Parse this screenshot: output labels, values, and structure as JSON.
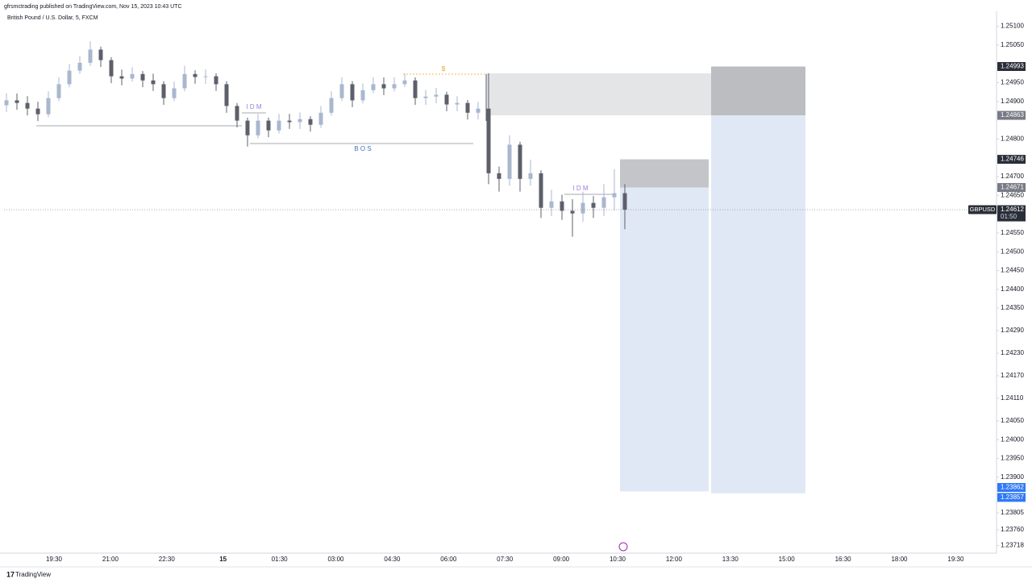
{
  "header": {
    "publisher": "gfrsmctrading published on TradingView.com, Nov 15, 2023 10:43 UTC",
    "symbol": "British Pound / U.S. Dollar, 5, FXCM"
  },
  "footer": {
    "brand": "TradingView"
  },
  "chart_data": {
    "type": "candlestick",
    "x_labels": [
      "19:30",
      "21:00",
      "22:30",
      "15",
      "01:30",
      "03:00",
      "04:30",
      "06:00",
      "07:30",
      "09:00",
      "10:30",
      "12:00",
      "13:30",
      "15:00",
      "16:30",
      "18:00",
      "19:30"
    ],
    "ylim": [
      1.237,
      1.2514
    ],
    "yticks": [
      {
        "value": 1.251,
        "label": "1.25100"
      },
      {
        "value": 1.2505,
        "label": "1.25050"
      },
      {
        "value": 1.2495,
        "label": "1.24950"
      },
      {
        "value": 1.249,
        "label": "1.24900"
      },
      {
        "value": 1.248,
        "label": "1.24800"
      },
      {
        "value": 1.247,
        "label": "1.24700"
      },
      {
        "value": 1.2465,
        "label": "1.24650"
      },
      {
        "value": 1.2455,
        "label": "1.24550"
      },
      {
        "value": 1.245,
        "label": "1.24500"
      },
      {
        "value": 1.2445,
        "label": "1.24450"
      },
      {
        "value": 1.244,
        "label": "1.24400"
      },
      {
        "value": 1.2435,
        "label": "1.24350"
      },
      {
        "value": 1.2429,
        "label": "1.24290"
      },
      {
        "value": 1.2423,
        "label": "1.24230"
      },
      {
        "value": 1.2417,
        "label": "1.24170"
      },
      {
        "value": 1.2411,
        "label": "1.24110"
      },
      {
        "value": 1.2405,
        "label": "1.24050"
      },
      {
        "value": 1.24,
        "label": "1.24000"
      },
      {
        "value": 1.2395,
        "label": "1.23950"
      },
      {
        "value": 1.239,
        "label": "1.23900"
      },
      {
        "value": 1.23805,
        "label": "1.23805"
      },
      {
        "value": 1.2376,
        "label": "1.23760"
      },
      {
        "value": 1.23718,
        "label": "1.23718"
      }
    ],
    "series": [
      {
        "name": "GBPUSD",
        "up_color": "#a9b7cf",
        "down_color": "#5d606b",
        "open": [
          1.2489,
          1.24903,
          1.24896,
          1.24881,
          1.24866,
          1.24909,
          1.24946,
          1.24982,
          1.25003,
          1.25038,
          1.2501,
          1.24967,
          1.24961,
          1.24973,
          1.24956,
          1.24946,
          1.24909,
          1.24935,
          1.24973,
          1.24965,
          1.24967,
          1.24946,
          1.24888,
          1.24849,
          1.2481,
          1.24849,
          1.24823,
          1.24849,
          1.24845,
          1.24853,
          1.24838,
          1.2487,
          1.24909,
          1.24946,
          1.24903,
          1.2493,
          1.24946,
          1.24935,
          1.24946,
          1.24956,
          1.24909,
          1.24913,
          1.24918,
          1.24892,
          1.24896,
          1.2487,
          1.24881,
          1.24709,
          1.24694,
          1.24785,
          1.24694,
          1.24709,
          1.24617,
          1.24634,
          1.24609,
          1.24602,
          1.2463,
          1.24617,
          1.24645,
          1.24656
        ],
        "high": [
          1.24921,
          1.24921,
          1.24914,
          1.24899,
          1.24927,
          1.24964,
          1.25,
          1.25021,
          1.2506,
          1.25046,
          1.25018,
          1.24985,
          1.24991,
          1.24981,
          1.24974,
          1.24954,
          1.24953,
          1.24995,
          1.24983,
          1.24985,
          1.24975,
          1.24954,
          1.24896,
          1.24857,
          1.24867,
          1.24857,
          1.24867,
          1.24867,
          1.24871,
          1.24861,
          1.24888,
          1.24927,
          1.24964,
          1.24954,
          1.24948,
          1.24964,
          1.24964,
          1.24964,
          1.24975,
          1.24964,
          1.24931,
          1.24936,
          1.24926,
          1.24914,
          1.24904,
          1.24899,
          1.24975,
          1.24727,
          1.2481,
          1.24793,
          1.24745,
          1.24717,
          1.24665,
          1.24652,
          1.2464,
          1.2466,
          1.24648,
          1.2468,
          1.2472,
          1.2468
        ],
        "low": [
          1.24872,
          1.24878,
          1.24863,
          1.24848,
          1.24858,
          1.24901,
          1.24938,
          1.24974,
          1.24995,
          1.24992,
          1.24949,
          1.24943,
          1.24953,
          1.24938,
          1.24928,
          1.24891,
          1.24901,
          1.24927,
          1.24947,
          1.24947,
          1.24928,
          1.2487,
          1.24831,
          1.2478,
          1.24802,
          1.24805,
          1.24815,
          1.24827,
          1.24827,
          1.2482,
          1.2483,
          1.24862,
          1.24901,
          1.24885,
          1.24895,
          1.24922,
          1.24917,
          1.24927,
          1.24938,
          1.24891,
          1.24891,
          1.24895,
          1.24874,
          1.24874,
          1.24852,
          1.24852,
          1.2468,
          1.2466,
          1.24676,
          1.2466,
          1.24676,
          1.2459,
          1.24595,
          1.24585,
          1.2454,
          1.2458,
          1.2459,
          1.24595,
          1.2461,
          1.2456
        ],
        "close": [
          1.24903,
          1.24896,
          1.24881,
          1.24866,
          1.24909,
          1.24946,
          1.24982,
          1.25003,
          1.25038,
          1.2501,
          1.24967,
          1.24961,
          1.24973,
          1.24956,
          1.24946,
          1.24909,
          1.24935,
          1.24973,
          1.24965,
          1.24967,
          1.24946,
          1.24888,
          1.24849,
          1.2481,
          1.24849,
          1.24823,
          1.24849,
          1.24845,
          1.24853,
          1.24838,
          1.2487,
          1.24909,
          1.24946,
          1.24903,
          1.2493,
          1.24946,
          1.24935,
          1.24946,
          1.24956,
          1.24909,
          1.24913,
          1.24918,
          1.24892,
          1.24896,
          1.2487,
          1.24881,
          1.24709,
          1.24694,
          1.24785,
          1.24694,
          1.24709,
          1.24617,
          1.24634,
          1.24609,
          1.24602,
          1.2463,
          1.24617,
          1.24645,
          1.24656,
          1.24612
        ]
      }
    ],
    "last_price": 1.24612,
    "countdown": "01:50",
    "price_labels": [
      {
        "value": 1.24993,
        "color": "#2a2e39"
      },
      {
        "value": 1.24863,
        "color": "#787b86"
      },
      {
        "value": 1.24746,
        "color": "#2a2e39"
      },
      {
        "value": 1.24671,
        "color": "#787b86"
      },
      {
        "value": 1.23862,
        "color": "#3179f5"
      },
      {
        "value": 1.23857,
        "color": "#3179f5"
      }
    ],
    "zones": [
      {
        "top": 1.24975,
        "bottom": 1.24863,
        "color": "#e4e5e7"
      },
      {
        "top": 1.24993,
        "bottom": 1.24863,
        "color": "#bbbdc0"
      },
      {
        "top": 1.24863,
        "bottom": 1.23857,
        "color": "#e1e8f5"
      },
      {
        "top": 1.24746,
        "bottom": 1.24671,
        "color": "#c3c5c8"
      },
      {
        "top": 1.24671,
        "bottom": 1.23862,
        "color": "#e1e8f5"
      }
    ],
    "annotations": [
      {
        "text": "I D M",
        "color": "#9b7fd4"
      },
      {
        "text": "B O S",
        "color": "#3d6fc2"
      },
      {
        "text": "$",
        "color": "#f0a030"
      },
      {
        "text": "I D M",
        "color": "#9b7fd4"
      }
    ]
  }
}
